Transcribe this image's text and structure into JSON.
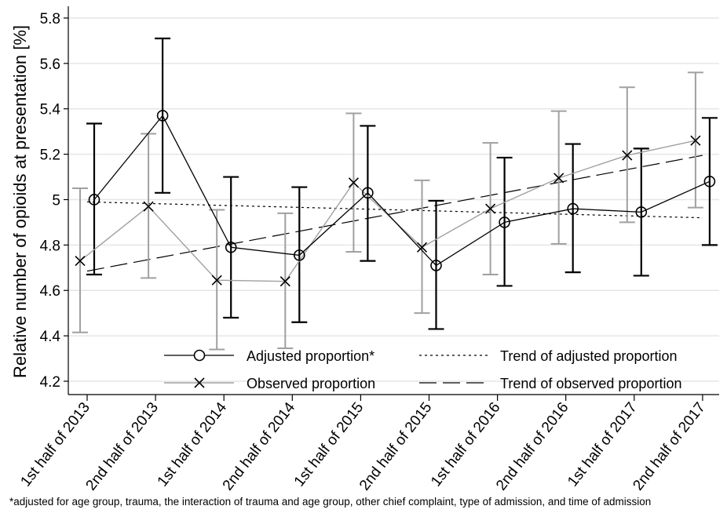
{
  "chart_data": {
    "type": "line",
    "title": "",
    "xlabel": "",
    "ylabel": "Relative number of opioids at presentation [%]",
    "ylim": [
      4.15,
      5.85
    ],
    "yticks": [
      4.2,
      4.4,
      4.6,
      4.8,
      5,
      5.2,
      5.4,
      5.6,
      5.8
    ],
    "ytick_labels": [
      "4.2",
      "4.4",
      "4.6",
      "4.8",
      "5",
      "5.2",
      "5.4",
      "5.6",
      "5.8"
    ],
    "grid": true,
    "categories": [
      "1st half of 2013",
      "2nd half of 2013",
      "1st half of 2014",
      "2nd half of 2014",
      "1st half of 2015",
      "2nd half of 2015",
      "1st half of 2016",
      "2nd half of 2016",
      "1st half of 2017",
      "2nd half of 2017"
    ],
    "series": [
      {
        "name": "Adjusted proportion*",
        "marker": "circle",
        "color": "#000000",
        "values": [
          5.0,
          5.37,
          4.79,
          4.755,
          5.03,
          4.71,
          4.9,
          4.96,
          4.945,
          5.08
        ],
        "ci_low": [
          4.67,
          5.03,
          4.48,
          4.46,
          4.73,
          4.43,
          4.62,
          4.68,
          4.665,
          4.8
        ],
        "ci_high": [
          5.335,
          5.71,
          5.1,
          5.055,
          5.325,
          4.995,
          5.185,
          5.245,
          5.225,
          5.36
        ]
      },
      {
        "name": "Observed proportion",
        "marker": "x",
        "color": "#a0a0a0",
        "values": [
          4.73,
          4.97,
          4.645,
          4.64,
          5.075,
          4.79,
          4.96,
          5.095,
          5.195,
          5.26
        ],
        "ci_low": [
          4.415,
          4.655,
          4.34,
          4.345,
          4.77,
          4.5,
          4.67,
          4.805,
          4.9,
          4.965
        ],
        "ci_high": [
          5.05,
          5.29,
          4.955,
          4.94,
          5.38,
          5.085,
          5.25,
          5.39,
          5.495,
          5.56
        ]
      },
      {
        "name": "Trend of adjusted proportion",
        "style": "dotted",
        "color": "#000000",
        "values": [
          4.99,
          4.9822,
          4.9744,
          4.9667,
          4.9589,
          4.9511,
          4.9433,
          4.9356,
          4.9278,
          4.92
        ]
      },
      {
        "name": "Trend of observed proportion",
        "style": "dashed",
        "color": "#000000",
        "values": [
          4.685,
          4.7417,
          4.7983,
          4.855,
          4.9117,
          4.9683,
          5.025,
          5.0817,
          5.1383,
          5.195
        ]
      }
    ],
    "legend": {
      "placement": "bottom-center",
      "entries": [
        "Adjusted proportion*",
        "Observed proportion",
        "Trend of adjusted proportion",
        "Trend of observed proportion"
      ]
    },
    "footnote": "*adjusted for age group, trauma, the interaction of trauma and age group, other chief complaint, type of admission, and time of admission"
  }
}
